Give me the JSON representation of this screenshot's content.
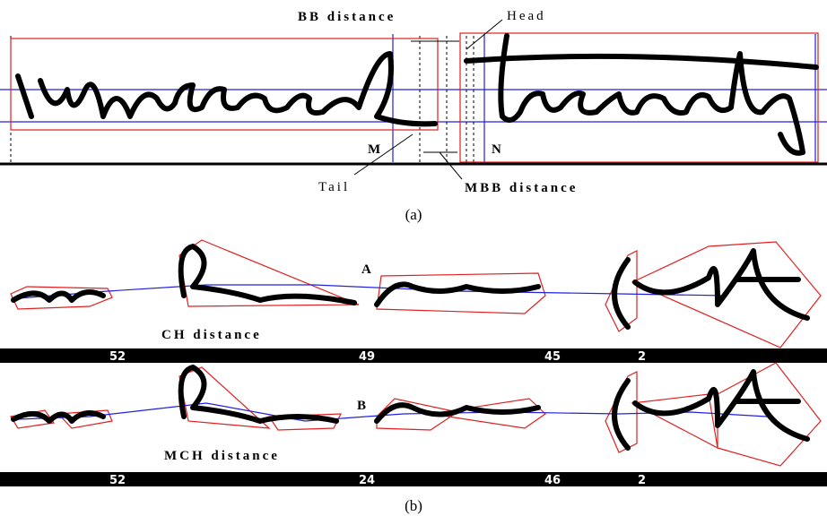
{
  "panel_a": {
    "bb_distance": "BB distance",
    "head": "Head",
    "m": "M",
    "n": "N",
    "tail": "Tail",
    "mbb_distance": "MBB distance",
    "caption": "(a)"
  },
  "panel_b": {
    "ch": {
      "marker": "A",
      "label": "CH distance",
      "bar_values": [
        52,
        49,
        45,
        2
      ]
    },
    "mch": {
      "marker": "B",
      "label": "MCH distance",
      "bar_values": [
        52,
        24,
        46,
        2
      ]
    },
    "caption": "(b)"
  }
}
